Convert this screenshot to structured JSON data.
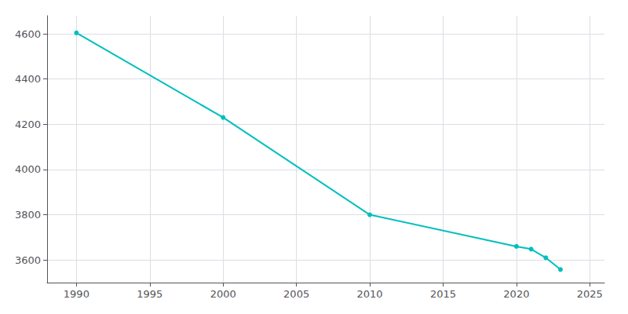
{
  "chart_data": {
    "type": "line",
    "x": [
      1990,
      2000,
      2010,
      2020,
      2021,
      2022,
      2023
    ],
    "values": [
      4604,
      4230,
      3800,
      3660,
      3648,
      3610,
      3558
    ],
    "color": "#00BFBF",
    "marker": "circle",
    "xlim": [
      1988,
      2026
    ],
    "xticks": [
      1990,
      1995,
      2000,
      2005,
      2010,
      2015,
      2020,
      2025
    ],
    "ylim": [
      3500,
      4680
    ],
    "yticks": [
      3600,
      3800,
      4000,
      4200,
      4400,
      4600
    ],
    "grid": true
  }
}
